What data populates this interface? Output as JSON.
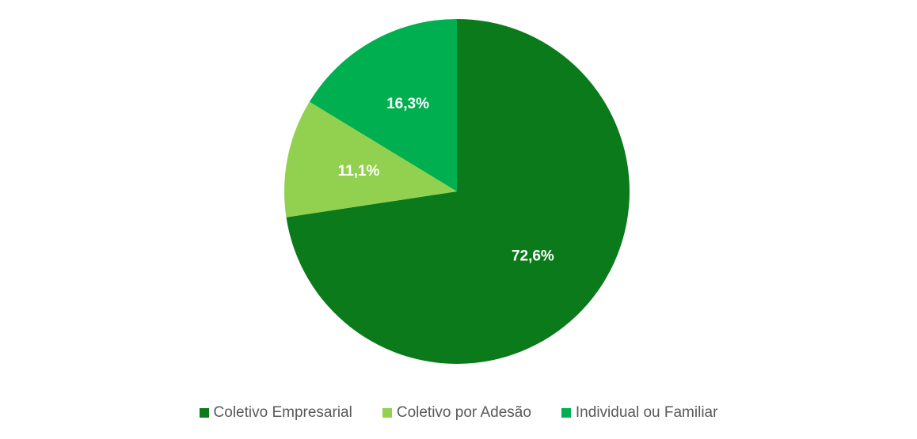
{
  "chart_data": {
    "type": "pie",
    "title": "",
    "categories": [
      "Coletivo Empresarial",
      "Coletivo por Adesão",
      "Individual ou Familiar"
    ],
    "values": [
      72.6,
      11.1,
      16.3
    ],
    "data_labels": [
      "72,6%",
      "11,1%",
      "16,3%"
    ],
    "colors": [
      "#0a7a1a",
      "#92d050",
      "#00b050"
    ],
    "start_angle": "12 o'clock",
    "direction": "clockwise",
    "legend_position": "bottom"
  }
}
